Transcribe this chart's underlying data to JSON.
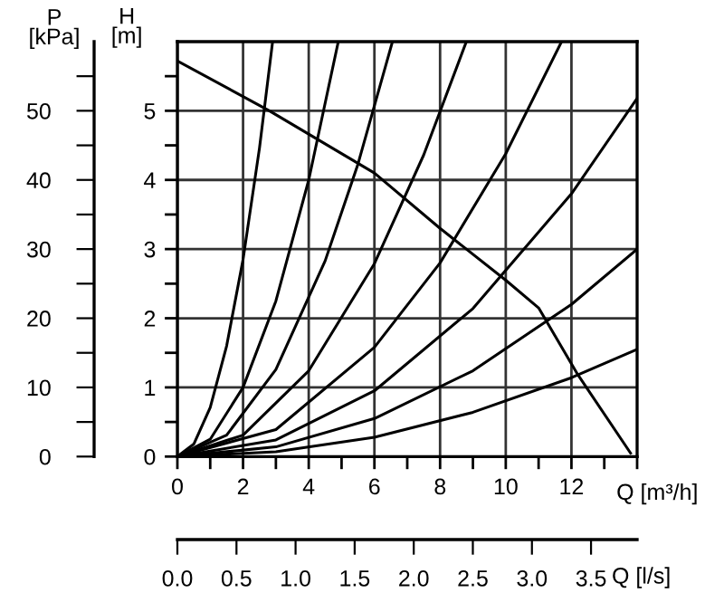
{
  "chart_data": {
    "type": "line",
    "xlabel": "Q [m³/h]",
    "ylabel": "H\n[m]",
    "y2label": "P\n[kPa]",
    "x2label": "Q [l/s]",
    "xlim": [
      0,
      14
    ],
    "xticks": [
      0,
      {
        "value": 1,
        "label": null
      },
      2,
      {
        "value": 3,
        "label": null
      },
      4,
      {
        "value": 5,
        "label": null
      },
      6,
      {
        "value": 7,
        "label": null
      },
      8,
      {
        "value": 9,
        "label": null
      },
      10,
      {
        "value": 11,
        "label": null
      },
      12,
      {
        "value": 13,
        "label": null
      },
      {
        "value": 14,
        "label": null
      }
    ],
    "ylim": [
      0,
      6
    ],
    "yticks": [
      0,
      {
        "value": 0.5,
        "label": null
      },
      1,
      {
        "value": 1.5,
        "label": null
      },
      2,
      {
        "value": 2.5,
        "label": null
      },
      3,
      {
        "value": 3.5,
        "label": null
      },
      4,
      {
        "value": 4.5,
        "label": null
      },
      5,
      {
        "value": 5.5,
        "label": null
      }
    ],
    "y2lim": [
      0,
      60
    ],
    "y2ticks": [
      0,
      {
        "value": 5,
        "label": null
      },
      10,
      {
        "value": 15,
        "label": null
      },
      20,
      {
        "value": 25,
        "label": null
      },
      30,
      {
        "value": 35,
        "label": null
      },
      40,
      {
        "value": 45,
        "label": null
      },
      50,
      {
        "value": 55,
        "label": null
      }
    ],
    "x2lim": [
      0,
      3.89
    ],
    "x2ticks": [
      {
        "value": 0,
        "label": "0.0"
      },
      0.5,
      {
        "value": 1,
        "label": "1.0"
      },
      1.5,
      {
        "value": 2,
        "label": "2.0"
      },
      2.5,
      {
        "value": 3,
        "label": "3.0"
      },
      3.5
    ],
    "grid": true,
    "marker": "none",
    "line_style": "solid",
    "series": [
      {
        "color": "#000000",
        "x": [
          0,
          0.5,
          1,
          1.5,
          2,
          2.5,
          2.9
        ],
        "values": [
          0,
          0.18,
          0.71,
          1.6,
          2.85,
          4.46,
          6.0
        ]
      },
      {
        "color": "#000000",
        "x": [
          0,
          1,
          2,
          3,
          4,
          4.9
        ],
        "values": [
          0,
          0.25,
          1.0,
          2.25,
          4.0,
          6.0
        ]
      },
      {
        "color": "#000000",
        "x": [
          0,
          1.5,
          3,
          4.5,
          5.5,
          6.55
        ],
        "values": [
          0,
          0.31,
          1.26,
          2.83,
          4.23,
          6.0
        ]
      },
      {
        "color": "#000000",
        "x": [
          0,
          2,
          4,
          6,
          7.5,
          8.8
        ],
        "values": [
          0,
          0.31,
          1.24,
          2.79,
          4.36,
          6.0
        ]
      },
      {
        "color": "#000000",
        "x": [
          0,
          3,
          6,
          8,
          10,
          11.7
        ],
        "values": [
          0,
          0.39,
          1.58,
          2.8,
          4.38,
          6.0
        ]
      },
      {
        "color": "#000000",
        "x": [
          0,
          3,
          6,
          9,
          12,
          14
        ],
        "values": [
          0,
          0.24,
          0.95,
          2.14,
          3.8,
          5.18
        ]
      },
      {
        "color": "#000000",
        "x": [
          0,
          3,
          6,
          9,
          12,
          14
        ],
        "values": [
          0,
          0.14,
          0.55,
          1.24,
          2.2,
          3.0
        ]
      },
      {
        "color": "#000000",
        "x": [
          0,
          3,
          6,
          9,
          12,
          14
        ],
        "values": [
          0,
          0.07,
          0.28,
          0.64,
          1.14,
          1.55
        ]
      },
      {
        "color": "#000000",
        "x": [
          0,
          2.8,
          6,
          8,
          10,
          11,
          12.2,
          13.8
        ],
        "values": [
          5.72,
          5.0,
          4.1,
          3.3,
          2.55,
          2.15,
          1.18,
          0.05
        ]
      }
    ]
  }
}
